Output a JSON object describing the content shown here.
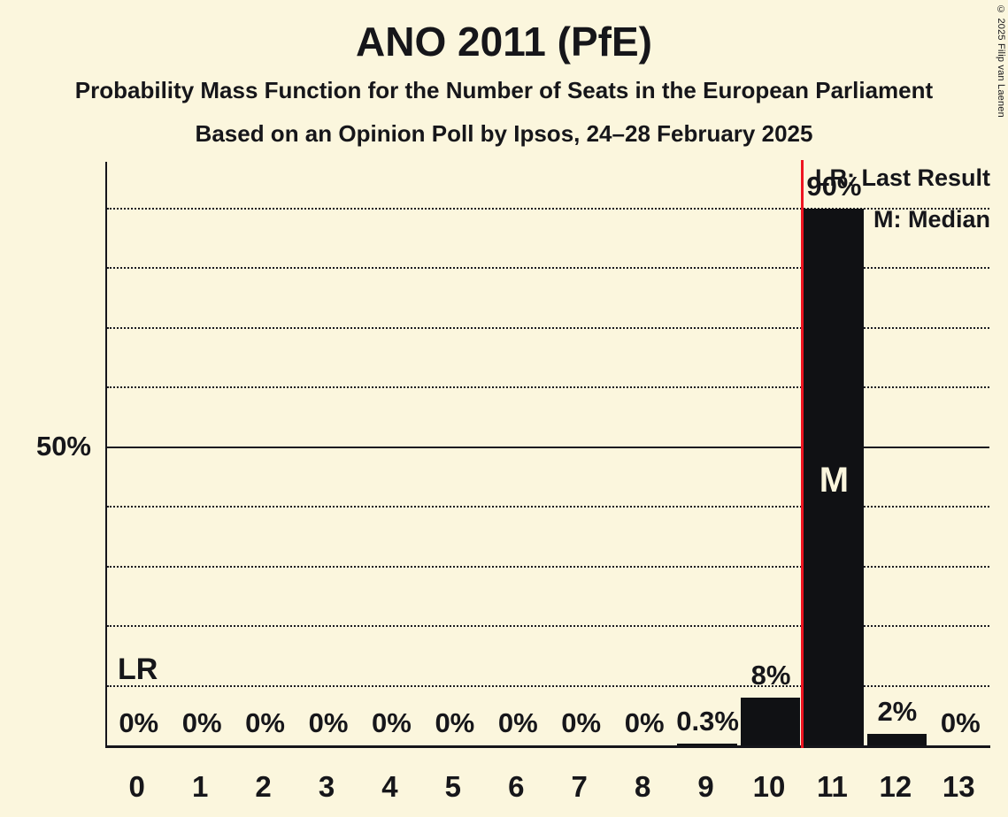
{
  "page": {
    "background_color": "#FBF6DD",
    "text_color": "#16161a",
    "copyright": "© 2025 Filip van Laenen"
  },
  "chart_data": {
    "type": "bar",
    "title": "ANO 2011 (PfE)",
    "subtitle": "Probability Mass Function for the Number of Seats in the European Parliament",
    "source_line": "Based on an Opinion Poll by Ipsos, 24–28 February 2025",
    "xlabel": "",
    "ylabel": "",
    "categories": [
      "0",
      "1",
      "2",
      "3",
      "4",
      "5",
      "6",
      "7",
      "8",
      "9",
      "10",
      "11",
      "12",
      "13"
    ],
    "values": [
      0,
      0,
      0,
      0,
      0,
      0,
      0,
      0,
      0,
      0.3,
      8,
      90,
      2,
      0
    ],
    "value_labels": [
      "0%",
      "0%",
      "0%",
      "0%",
      "0%",
      "0%",
      "0%",
      "0%",
      "0%",
      "0.3%",
      "8%",
      "90%",
      "2%",
      "0%"
    ],
    "ylim": [
      0,
      98
    ],
    "grid": true,
    "gridlines": {
      "dotted_pct": [
        10,
        20,
        30,
        40,
        60,
        70,
        80,
        90
      ],
      "solid_pct": [
        50
      ]
    },
    "y_tick": {
      "value": 50,
      "label": "50%"
    },
    "legend": {
      "position": "top-right",
      "lr": "LR: Last Result",
      "m": "M: Median"
    },
    "last_result": {
      "line_position": 10.5,
      "label": "LR",
      "line_color": "#ee1420"
    },
    "median": {
      "seat": 11,
      "label": "M"
    },
    "colors": {
      "bar": "#101114",
      "median_text": "#FBF6DD",
      "grid": "#1b1b20"
    }
  }
}
